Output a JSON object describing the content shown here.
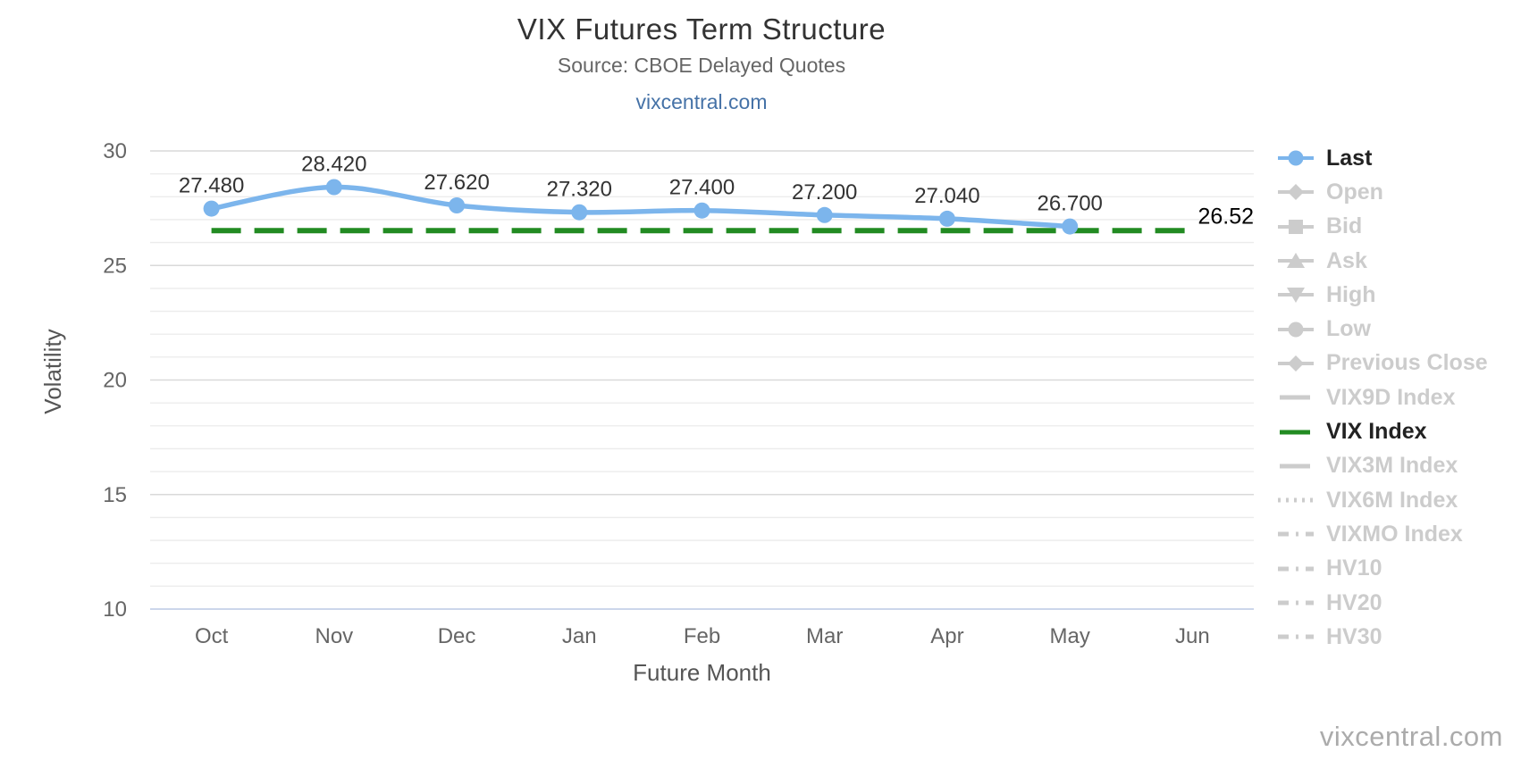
{
  "header": {
    "title": "VIX Futures Term Structure",
    "subtitle": "Source: CBOE Delayed Quotes",
    "link": "vixcentral.com"
  },
  "watermark": "vixcentral.com",
  "chart_data": {
    "type": "line",
    "title": "VIX Futures Term Structure",
    "subtitle": "Source: CBOE Delayed Quotes",
    "xlabel": "Future Month",
    "ylabel": "Volatility",
    "categories": [
      "Oct",
      "Nov",
      "Dec",
      "Jan",
      "Feb",
      "Mar",
      "Apr",
      "May",
      "Jun"
    ],
    "yticks": [
      10,
      15,
      20,
      25,
      30
    ],
    "ylim": [
      10,
      30.5
    ],
    "grid": "minor-horizontal",
    "legend_position": "right",
    "series": [
      {
        "name": "Last",
        "type": "spline",
        "color": "#7cb5ec",
        "values": [
          27.48,
          28.42,
          27.62,
          27.32,
          27.4,
          27.2,
          27.04,
          26.7,
          null
        ],
        "data_labels": [
          "27.480",
          "28.420",
          "27.620",
          "27.320",
          "27.400",
          "27.200",
          "27.040",
          "26.700"
        ]
      },
      {
        "name": "VIX Index",
        "type": "horizontal-dashed",
        "color": "#228B22",
        "value": 26.52,
        "label": "26.52",
        "span": [
          "Oct",
          "Jun"
        ]
      }
    ]
  },
  "legend": {
    "items": [
      {
        "label": "Last",
        "marker": "line-circle",
        "active": true
      },
      {
        "label": "Open",
        "marker": "line-diamond",
        "active": false
      },
      {
        "label": "Bid",
        "marker": "line-square",
        "active": false
      },
      {
        "label": "Ask",
        "marker": "line-triangle-up",
        "active": false
      },
      {
        "label": "High",
        "marker": "line-triangle-down",
        "active": false
      },
      {
        "label": "Low",
        "marker": "line-circle",
        "active": false
      },
      {
        "label": "Previous Close",
        "marker": "line-diamond",
        "active": false
      },
      {
        "label": "VIX9D Index",
        "marker": "line",
        "active": false
      },
      {
        "label": "VIX Index",
        "marker": "line",
        "active": true
      },
      {
        "label": "VIX3M Index",
        "marker": "line",
        "active": false
      },
      {
        "label": "VIX6M Index",
        "marker": "dotted",
        "active": false
      },
      {
        "label": "VIXMO Index",
        "marker": "dash-dot",
        "active": false
      },
      {
        "label": "HV10",
        "marker": "dash-dot",
        "active": false
      },
      {
        "label": "HV20",
        "marker": "dash-dot",
        "active": false
      },
      {
        "label": "HV30",
        "marker": "dash-dot",
        "active": false
      }
    ]
  },
  "colors": {
    "last_series": "#7cb5ec",
    "vix_index": "#228B22",
    "grid_minor": "#ececec",
    "grid_major": "#d9d9d9",
    "axis_line": "#ccd6eb",
    "tick_text": "#666666",
    "axis_title_text": "#555555",
    "data_label_text": "#333333",
    "legend_active_text": "#222222",
    "legend_disabled": "#cccccc",
    "link": "#4572a7"
  }
}
